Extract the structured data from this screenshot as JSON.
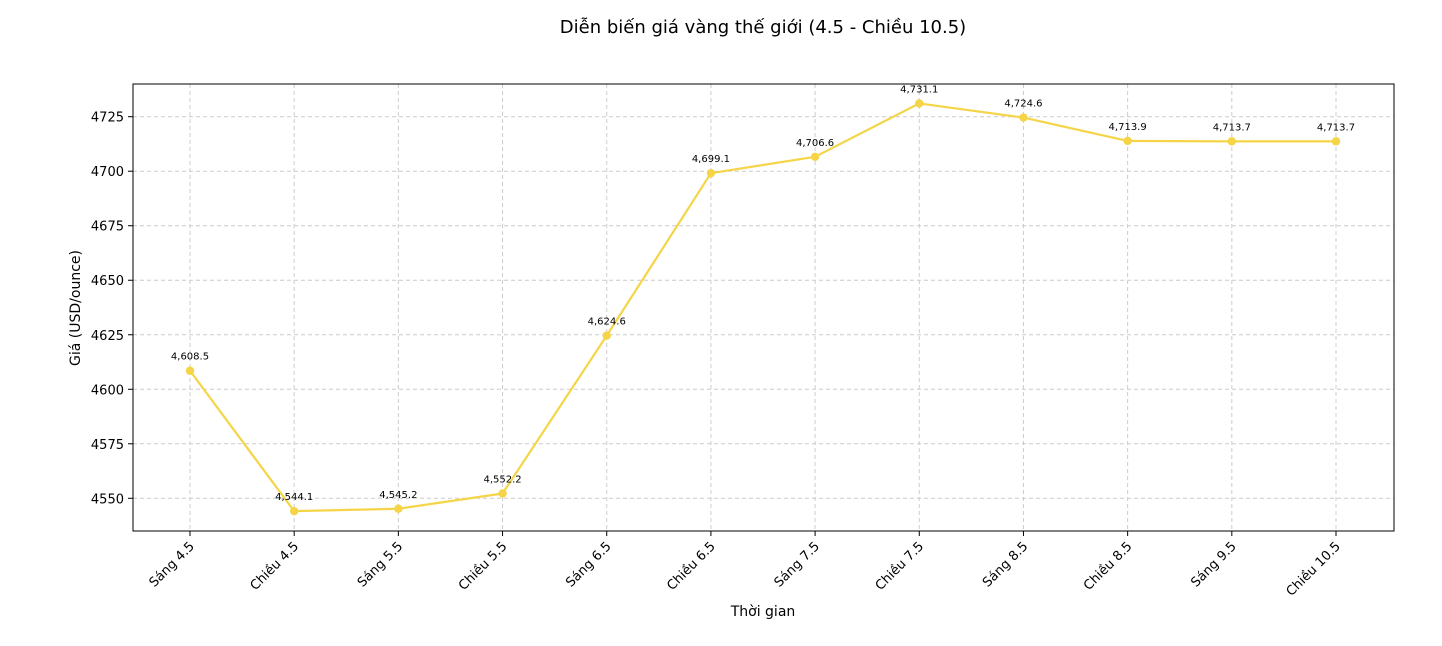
{
  "chart_data": {
    "type": "line",
    "title": "Diễn biến giá vàng thế giới (4.5 - Chiều 10.5)",
    "xlabel": "Thời gian",
    "ylabel": "Giá (USD/ounce)",
    "categories": [
      "Sáng 4.5",
      "Chiều 4.5",
      "Sáng 5.5",
      "Chiều 5.5",
      "Sáng 6.5",
      "Chiều 6.5",
      "Sáng 7.5",
      "Chiều 7.5",
      "Sáng 8.5",
      "Chiều 8.5",
      "Sáng 9.5",
      "Chiều 10.5"
    ],
    "values": [
      4608.5,
      4544.1,
      4545.2,
      4552.2,
      4624.6,
      4699.1,
      4706.6,
      4731.1,
      4724.6,
      4713.9,
      4713.7,
      4713.7
    ],
    "value_labels": [
      "4,608.5",
      "4,544.1",
      "4,545.2",
      "4,552.2",
      "4,624.6",
      "4,699.1",
      "4,706.6",
      "4,731.1",
      "4,724.6",
      "4,713.9",
      "4,713.7",
      "4,713.7"
    ],
    "yticks": [
      4550,
      4575,
      4600,
      4625,
      4650,
      4675,
      4700,
      4725
    ],
    "ylim": [
      4535,
      4740
    ],
    "grid": true,
    "line_color": "#F5D547"
  }
}
